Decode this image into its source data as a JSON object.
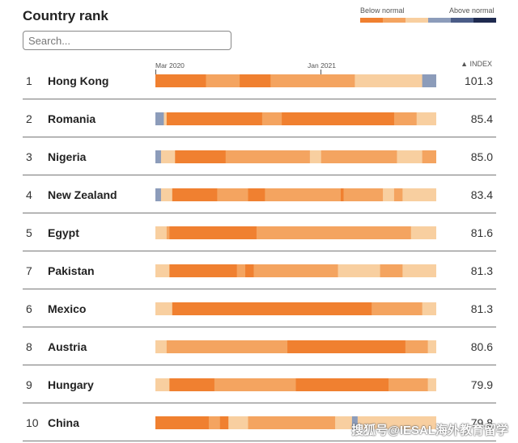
{
  "header": {
    "title": "Country rank",
    "search_placeholder": "Search..."
  },
  "legend": {
    "below_label": "Below normal",
    "above_label": "Above normal",
    "colors": [
      "#F08030",
      "#F4A460",
      "#F8CFA0",
      "#8C9CBA",
      "#4A5C87",
      "#1E2A4F"
    ]
  },
  "axis": {
    "labels": [
      {
        "text": "Mar 2020",
        "date": "2020-03"
      },
      {
        "text": "Jan 2021",
        "date": "2021-01"
      }
    ],
    "index_label": "▲ INDEX"
  },
  "watermark": "搜狐号@IESAL海外教育留学",
  "chart_data": {
    "type": "heatmap",
    "title": "Country rank",
    "period_start": "2020-03",
    "colors": {
      "strong_below": "#F08030",
      "below": "#F4A460",
      "slight_below": "#F8CFA0",
      "slight_above": "#8C9CBA"
    },
    "rows": [
      {
        "rank": "1",
        "country": "Hong Kong",
        "index": "101.3",
        "segments": [
          [
            0.18,
            "strong_below"
          ],
          [
            0.12,
            "below"
          ],
          [
            0.11,
            "strong_below"
          ],
          [
            0.02,
            "below"
          ],
          [
            0.28,
            "below"
          ],
          [
            0.24,
            "slight_below"
          ],
          [
            0.05,
            "slight_above"
          ]
        ]
      },
      {
        "rank": "2",
        "country": "Romania",
        "index": "85.4",
        "segments": [
          [
            0.03,
            "slight_above"
          ],
          [
            0.01,
            "slight_below"
          ],
          [
            0.34,
            "strong_below"
          ],
          [
            0.07,
            "below"
          ],
          [
            0.4,
            "strong_below"
          ],
          [
            0.08,
            "below"
          ],
          [
            0.07,
            "slight_below"
          ]
        ]
      },
      {
        "rank": "3",
        "country": "Nigeria",
        "index": "85.0",
        "segments": [
          [
            0.02,
            "slight_above"
          ],
          [
            0.05,
            "slight_below"
          ],
          [
            0.18,
            "strong_below"
          ],
          [
            0.3,
            "below"
          ],
          [
            0.04,
            "slight_below"
          ],
          [
            0.27,
            "below"
          ],
          [
            0.09,
            "slight_below"
          ],
          [
            0.05,
            "below"
          ]
        ]
      },
      {
        "rank": "4",
        "country": "New Zealand",
        "index": "83.4",
        "segments": [
          [
            0.02,
            "slight_above"
          ],
          [
            0.04,
            "slight_below"
          ],
          [
            0.16,
            "strong_below"
          ],
          [
            0.11,
            "below"
          ],
          [
            0.06,
            "strong_below"
          ],
          [
            0.27,
            "below"
          ],
          [
            0.01,
            "strong_below"
          ],
          [
            0.14,
            "below"
          ],
          [
            0.04,
            "slight_below"
          ],
          [
            0.03,
            "below"
          ],
          [
            0.12,
            "slight_below"
          ]
        ]
      },
      {
        "rank": "5",
        "country": "Egypt",
        "index": "81.6",
        "segments": [
          [
            0.04,
            "slight_below"
          ],
          [
            0.01,
            "below"
          ],
          [
            0.31,
            "strong_below"
          ],
          [
            0.55,
            "below"
          ],
          [
            0.09,
            "slight_below"
          ]
        ]
      },
      {
        "rank": "7",
        "country": "Pakistan",
        "index": "81.3",
        "segments": [
          [
            0.05,
            "slight_below"
          ],
          [
            0.24,
            "strong_below"
          ],
          [
            0.03,
            "below"
          ],
          [
            0.03,
            "strong_below"
          ],
          [
            0.3,
            "below"
          ],
          [
            0.01,
            "slight_below"
          ],
          [
            0.14,
            "slight_below"
          ],
          [
            0.08,
            "below"
          ],
          [
            0.12,
            "slight_below"
          ]
        ]
      },
      {
        "rank": "6",
        "country": "Mexico",
        "index": "81.3",
        "segments": [
          [
            0.06,
            "slight_below"
          ],
          [
            0.71,
            "strong_below"
          ],
          [
            0.18,
            "below"
          ],
          [
            0.05,
            "slight_below"
          ]
        ]
      },
      {
        "rank": "8",
        "country": "Austria",
        "index": "80.6",
        "segments": [
          [
            0.04,
            "slight_below"
          ],
          [
            0.19,
            "below"
          ],
          [
            0.24,
            "below"
          ],
          [
            0.42,
            "strong_below"
          ],
          [
            0.08,
            "below"
          ],
          [
            0.03,
            "slight_below"
          ]
        ]
      },
      {
        "rank": "9",
        "country": "Hungary",
        "index": "79.9",
        "segments": [
          [
            0.05,
            "slight_below"
          ],
          [
            0.16,
            "strong_below"
          ],
          [
            0.29,
            "below"
          ],
          [
            0.33,
            "strong_below"
          ],
          [
            0.14,
            "below"
          ],
          [
            0.03,
            "slight_below"
          ]
        ]
      },
      {
        "rank": "10",
        "country": "China",
        "index": "79.8",
        "segments": [
          [
            0.19,
            "strong_below"
          ],
          [
            0.04,
            "below"
          ],
          [
            0.03,
            "strong_below"
          ],
          [
            0.07,
            "slight_below"
          ],
          [
            0.31,
            "below"
          ],
          [
            0.06,
            "slight_below"
          ],
          [
            0.02,
            "slight_above"
          ],
          [
            0.28,
            "slight_below"
          ]
        ]
      }
    ]
  }
}
